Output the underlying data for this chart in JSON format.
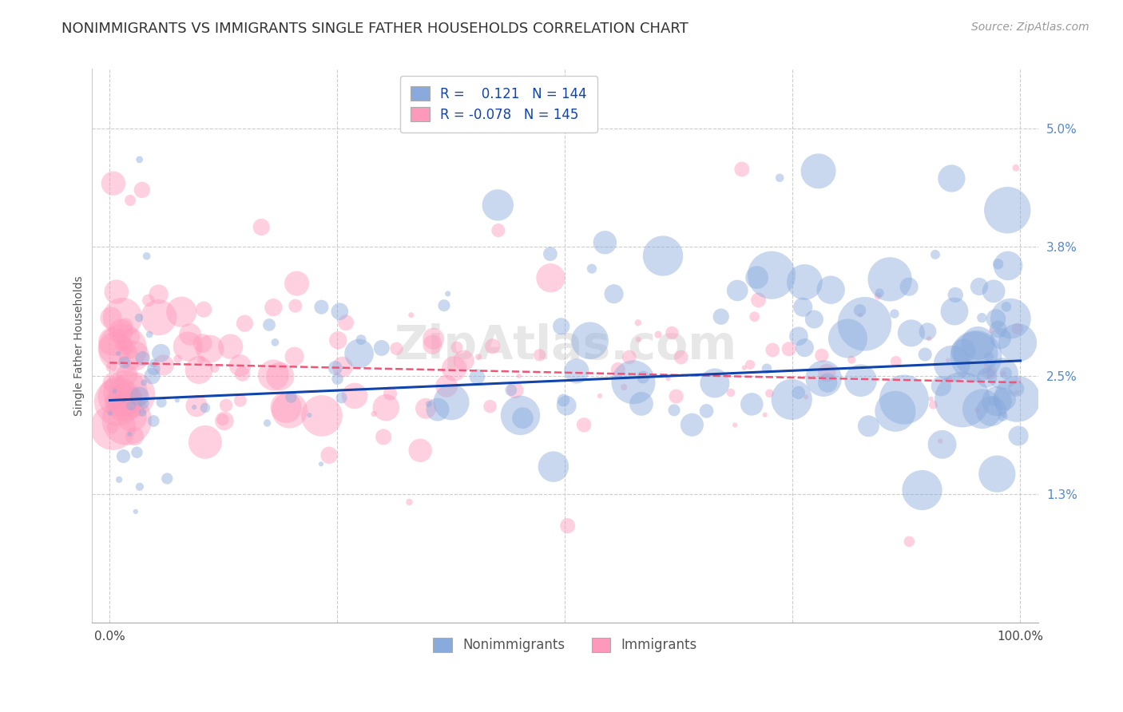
{
  "title": "NONIMMIGRANTS VS IMMIGRANTS SINGLE FATHER HOUSEHOLDS CORRELATION CHART",
  "source": "Source: ZipAtlas.com",
  "ylabel": "Single Father Households",
  "y_tick_values": [
    1.3,
    2.5,
    3.8,
    5.0
  ],
  "y_tick_labels": [
    "1.3%",
    "2.5%",
    "3.8%",
    "5.0%"
  ],
  "x_tick_values": [
    0,
    25,
    50,
    75,
    100
  ],
  "x_tick_labels": [
    "0.0%",
    "",
    "",
    "",
    "100.0%"
  ],
  "xlim": [
    -2,
    102
  ],
  "ylim": [
    0.0,
    5.6
  ],
  "nonimmigrants_R": 0.121,
  "nonimmigrants_N": 144,
  "immigrants_R": -0.078,
  "immigrants_N": 145,
  "nonimmigrant_color": "#88AADD",
  "immigrant_color": "#FF99BB",
  "trend_nonimmigrant_color": "#1144AA",
  "trend_immigrant_color": "#EE5577",
  "background_color": "#FFFFFF",
  "grid_color": "#CCCCCC",
  "title_color": "#333333",
  "yaxis_tick_color": "#5588CC",
  "xaxis_tick_color": "#444444",
  "ylabel_color": "#555555",
  "title_fontsize": 13,
  "source_fontsize": 10,
  "ylabel_fontsize": 10,
  "legend_fontsize": 12,
  "ytick_fontsize": 11,
  "xtick_fontsize": 11,
  "watermark": "ZipAtlas.com"
}
